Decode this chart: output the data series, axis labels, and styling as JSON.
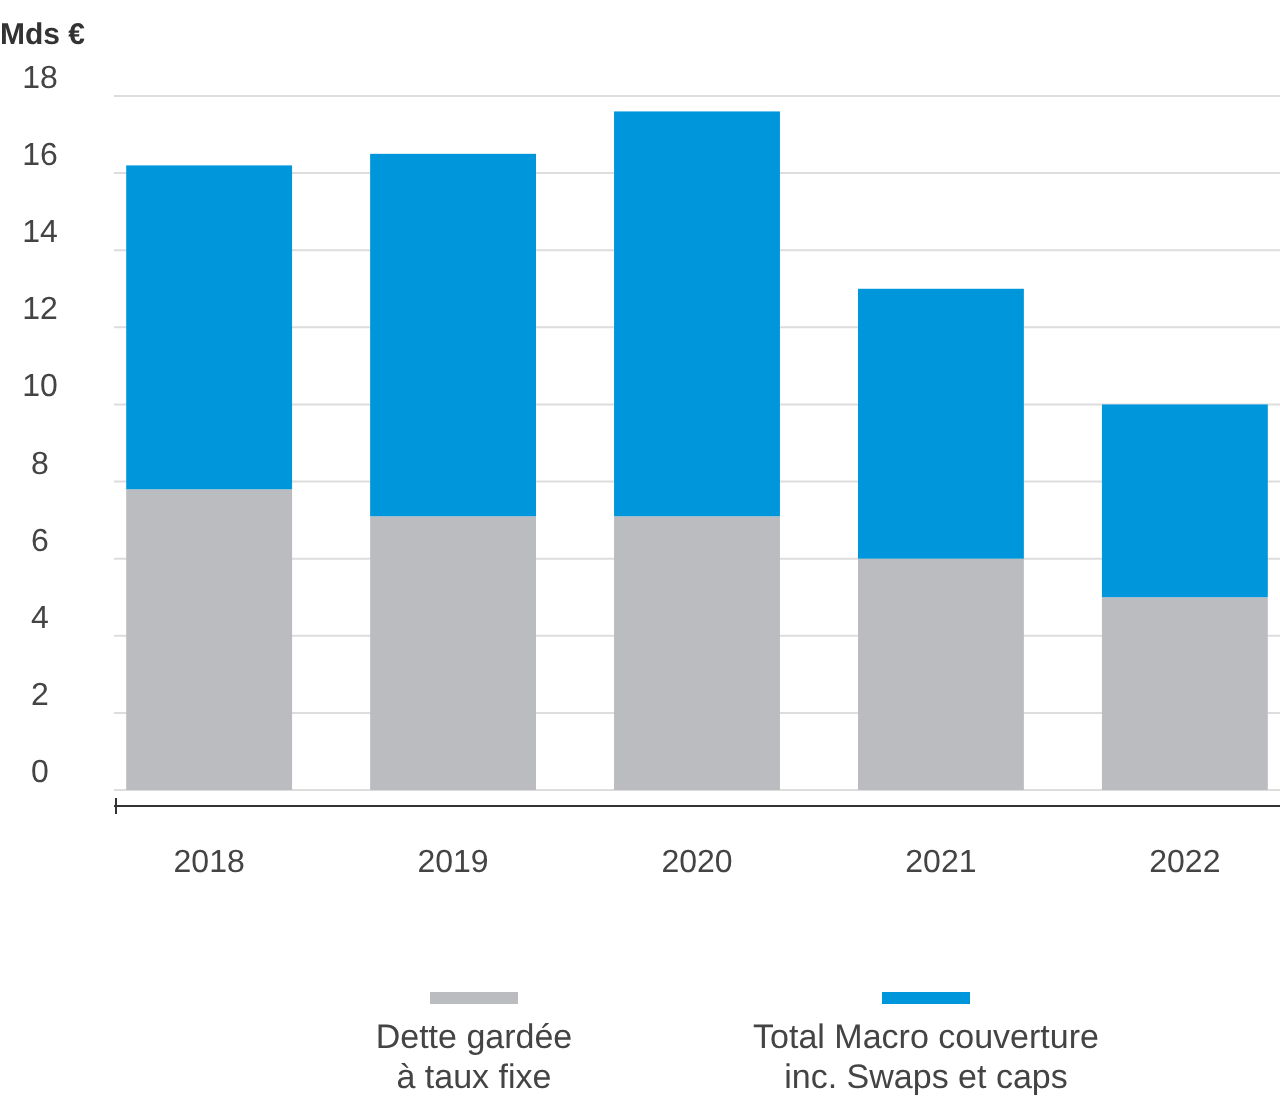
{
  "chart_data": {
    "type": "bar",
    "stacked": true,
    "ylabel": "Mds €",
    "categories": [
      "2018",
      "2019",
      "2020",
      "2021",
      "2022"
    ],
    "series": [
      {
        "name": "Dette gardée à taux fixe",
        "color": "#bbbcc0",
        "values": [
          7.8,
          7.1,
          7.1,
          6.0,
          5.0
        ]
      },
      {
        "name": "Total Macro couverture inc. Swaps et caps",
        "color": "#0096db",
        "values": [
          8.4,
          9.4,
          10.5,
          7.0,
          5.0
        ]
      }
    ],
    "ylim": [
      0,
      18
    ],
    "yticks": [
      0,
      2,
      4,
      6,
      8,
      10,
      12,
      14,
      16,
      18
    ],
    "grid": "y",
    "legend": "bottom"
  }
}
